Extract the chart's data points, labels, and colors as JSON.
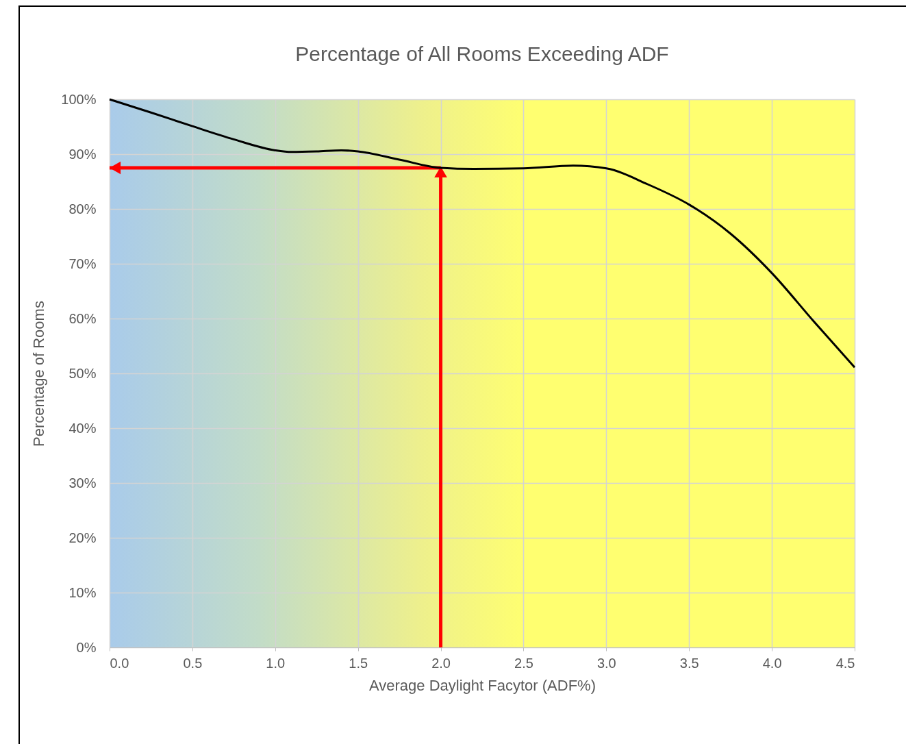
{
  "chart_data": {
    "type": "line",
    "title": "Percentage of All Rooms Exceeding ADF",
    "xlabel": "Average Daylight Facytor (ADF%)",
    "ylabel": "Percentage of Rooms",
    "x": [
      0,
      0.25,
      0.5,
      0.75,
      1.0,
      1.1,
      1.25,
      1.4,
      1.5,
      1.75,
      2.0,
      2.2,
      2.5,
      2.8,
      3.0,
      3.25,
      3.5,
      3.75,
      4.0,
      4.25,
      4.5
    ],
    "series": [
      {
        "color": "#000000",
        "values": [
          100,
          97.6,
          95.1,
          92.7,
          90.7,
          90.4,
          90.5,
          90.7,
          90.5,
          89.0,
          87.5,
          87.3,
          87.4,
          87.9,
          87.4,
          84.5,
          80.8,
          75.5,
          68.3,
          59.6,
          51.1
        ]
      }
    ],
    "xlim": [
      0,
      4.5
    ],
    "ylim": [
      0,
      100
    ],
    "xticks": [
      {
        "value": 0,
        "label": "0.0"
      },
      {
        "value": 0.5,
        "label": "0.5"
      },
      {
        "value": 1,
        "label": "1.0"
      },
      {
        "value": 1.5,
        "label": "1.5"
      },
      {
        "value": 2,
        "label": "2.0"
      },
      {
        "value": 2.5,
        "label": "2.5"
      },
      {
        "value": 3,
        "label": "3.0"
      },
      {
        "value": 3.5,
        "label": "3.5"
      },
      {
        "value": 4,
        "label": "4.0"
      },
      {
        "value": 4.5,
        "label": "4.5"
      }
    ],
    "yticks": [
      {
        "value": 0,
        "label": "0%"
      },
      {
        "value": 10,
        "label": "10%"
      },
      {
        "value": 20,
        "label": "20%"
      },
      {
        "value": 30,
        "label": "30%"
      },
      {
        "value": 40,
        "label": "40%"
      },
      {
        "value": 50,
        "label": "50%"
      },
      {
        "value": 60,
        "label": "60%"
      },
      {
        "value": 70,
        "label": "70%"
      },
      {
        "value": 80,
        "label": "80%"
      },
      {
        "value": 90,
        "label": "90%"
      },
      {
        "value": 100,
        "label": "100%"
      }
    ],
    "ref_lines": [
      {
        "axis": "x",
        "value": 2.0,
        "color": "#ff0000"
      },
      {
        "axis": "y",
        "value": 87.5,
        "color": "#ff0000"
      }
    ],
    "grid": true,
    "legend": false,
    "marker": "none",
    "line_style": "solid"
  }
}
